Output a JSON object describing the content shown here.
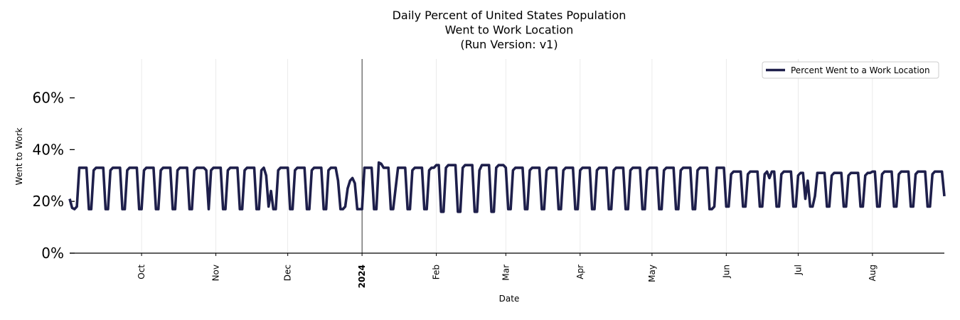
{
  "chart_data": {
    "type": "line",
    "title": [
      "Daily Percent of United States Population",
      "Went to Work Location",
      "(Run Version: v1)"
    ],
    "xlabel": "Date",
    "ylabel": "Went to Work",
    "x_range": [
      "2023-09-01",
      "2024-08-31"
    ],
    "ylim": [
      0,
      75
    ],
    "y_ticks": [
      {
        "value": 0,
        "label": "0%"
      },
      {
        "value": 20,
        "label": "20%"
      },
      {
        "value": 40,
        "label": "40%"
      },
      {
        "value": 60,
        "label": "60%"
      }
    ],
    "x_ticks": [
      {
        "date": "2023-10-01",
        "label": "Oct",
        "bold": false
      },
      {
        "date": "2023-11-01",
        "label": "Nov",
        "bold": false
      },
      {
        "date": "2023-12-01",
        "label": "Dec",
        "bold": false
      },
      {
        "date": "2024-01-01",
        "label": "2024",
        "bold": true
      },
      {
        "date": "2024-02-01",
        "label": "Feb",
        "bold": false
      },
      {
        "date": "2024-03-01",
        "label": "Mar",
        "bold": false
      },
      {
        "date": "2024-04-01",
        "label": "Apr",
        "bold": false
      },
      {
        "date": "2024-05-01",
        "label": "May",
        "bold": false
      },
      {
        "date": "2024-06-01",
        "label": "Jun",
        "bold": false
      },
      {
        "date": "2024-07-01",
        "label": "Jul",
        "bold": false
      },
      {
        "date": "2024-08-01",
        "label": "Aug",
        "bold": false
      }
    ],
    "grid": "vertical",
    "reference_line_date": "2024-01-01",
    "legend": {
      "position": "top-right",
      "entries": [
        "Percent Went to a Work Location"
      ]
    },
    "series": [
      {
        "name": "Percent Went to a Work Location",
        "color": "#1e1f4b",
        "pattern": {
          "start": "2023-09-01",
          "end": "2024-08-31",
          "weekday_by_month": [
            {
              "month": "2023-09",
              "weekday": 33,
              "weekend": 17
            },
            {
              "month": "2023-10",
              "weekday": 33,
              "weekend": 17
            },
            {
              "month": "2023-11",
              "weekday": 33,
              "weekend": 17
            },
            {
              "month": "2023-12",
              "weekday": 33,
              "weekend": 17
            },
            {
              "month": "2024-01",
              "weekday": 33,
              "weekend": 17
            },
            {
              "month": "2024-02",
              "weekday": 34,
              "weekend": 16
            },
            {
              "month": "2024-03",
              "weekday": 33,
              "weekend": 17
            },
            {
              "month": "2024-04",
              "weekday": 33,
              "weekend": 17
            },
            {
              "month": "2024-05",
              "weekday": 33,
              "weekend": 17
            },
            {
              "month": "2024-06",
              "weekday": 31.5,
              "weekend": 18
            },
            {
              "month": "2024-07",
              "weekday": 31,
              "weekend": 18
            },
            {
              "month": "2024-08",
              "weekday": 31.5,
              "weekend": 18
            }
          ],
          "overrides": [
            {
              "date": "2023-09-01",
              "value": 21
            },
            {
              "date": "2023-09-02",
              "value": 17.5
            },
            {
              "date": "2023-09-04",
              "value": 18
            },
            {
              "date": "2023-10-27",
              "value": 33
            },
            {
              "date": "2023-10-28",
              "value": 32
            },
            {
              "date": "2023-11-22",
              "value": 30
            },
            {
              "date": "2023-11-23",
              "value": 18
            },
            {
              "date": "2023-11-24",
              "value": 24
            },
            {
              "date": "2023-12-22",
              "value": 28
            },
            {
              "date": "2023-12-25",
              "value": 18
            },
            {
              "date": "2023-12-26",
              "value": 25
            },
            {
              "date": "2023-12-27",
              "value": 28
            },
            {
              "date": "2023-12-28",
              "value": 29
            },
            {
              "date": "2023-12-29",
              "value": 27
            },
            {
              "date": "2024-01-01",
              "value": 17
            },
            {
              "date": "2024-01-08",
              "value": 35
            },
            {
              "date": "2024-01-09",
              "value": 34.5
            },
            {
              "date": "2024-01-15",
              "value": 25
            },
            {
              "date": "2024-02-19",
              "value": 32
            },
            {
              "date": "2024-05-27",
              "value": 18
            },
            {
              "date": "2024-06-19",
              "value": 29
            },
            {
              "date": "2024-07-04",
              "value": 21
            },
            {
              "date": "2024-07-05",
              "value": 28
            },
            {
              "date": "2024-07-08",
              "value": 22
            },
            {
              "date": "2024-08-31",
              "value": 22
            }
          ]
        }
      }
    ]
  }
}
